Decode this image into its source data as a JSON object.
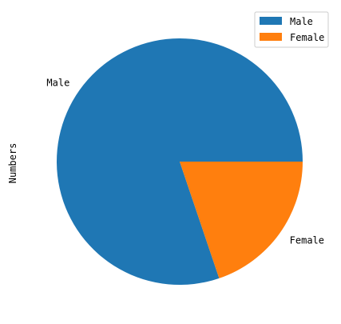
{
  "chart_data": {
    "type": "pie",
    "title": "",
    "ylabel": "Numbers",
    "categories": [
      "Male",
      "Female"
    ],
    "values": [
      80.2,
      19.8
    ],
    "colors": [
      "#1f77b4",
      "#ff7f0e"
    ],
    "start_angle_deg": 0,
    "direction": "counterclockwise",
    "legend": {
      "placement": "top-right",
      "entries": [
        "Male",
        "Female"
      ]
    }
  }
}
